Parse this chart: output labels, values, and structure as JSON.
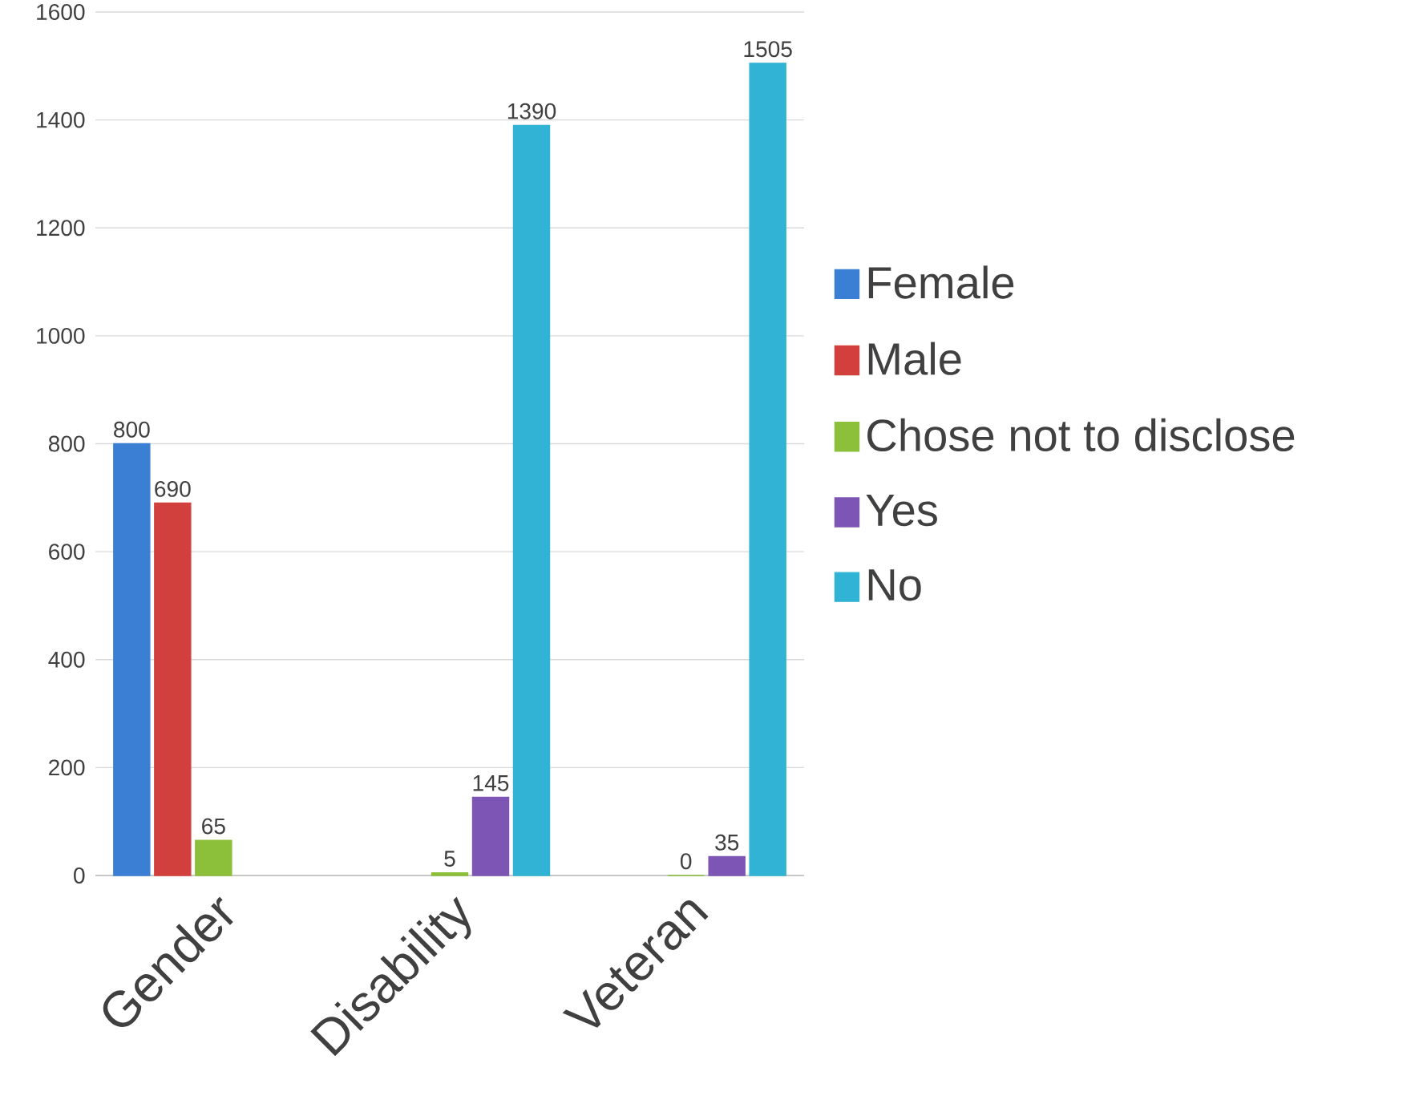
{
  "chart_data": {
    "type": "bar",
    "categories": [
      "Gender",
      "Disability",
      "Veteran"
    ],
    "series": [
      {
        "name": "Female",
        "color": "#3a7fd4",
        "values": [
          800,
          null,
          null
        ]
      },
      {
        "name": "Male",
        "color": "#d2403e",
        "values": [
          690,
          null,
          null
        ]
      },
      {
        "name": "Chose not to disclose",
        "color": "#8cbf3a",
        "values": [
          65,
          5,
          0
        ]
      },
      {
        "name": "Yes",
        "color": "#7d55b5",
        "values": [
          null,
          145,
          35
        ]
      },
      {
        "name": "No",
        "color": "#30b3d4",
        "values": [
          null,
          1390,
          1505
        ]
      }
    ],
    "ylim": [
      0,
      1600
    ],
    "yticks": [
      0,
      200,
      400,
      600,
      800,
      1000,
      1200,
      1400,
      1600
    ],
    "grid": "y",
    "legend": "right",
    "data_labels": true
  }
}
